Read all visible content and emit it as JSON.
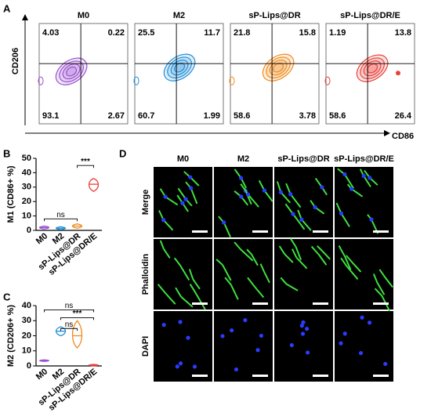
{
  "panel_labels": [
    "A",
    "B",
    "C",
    "D"
  ],
  "flow": {
    "x_label": "CD86",
    "y_label": "CD206",
    "groups": [
      {
        "name": "M0",
        "quadrants": [
          4.03,
          0.22,
          93.1,
          2.67
        ],
        "color": "#9b4fd0"
      },
      {
        "name": "M2",
        "quadrants": [
          25.5,
          11.7,
          60.7,
          1.99
        ],
        "color": "#1f8fd8"
      },
      {
        "name": "sP-Lips@DR",
        "quadrants": [
          21.8,
          15.8,
          58.6,
          3.78
        ],
        "color": "#f08a1c"
      },
      {
        "name": "sP-Lips@DR/E",
        "quadrants": [
          1.19,
          13.8,
          58.6,
          26.4
        ],
        "color": "#e8413a"
      }
    ]
  },
  "chart_data": [
    {
      "type": "violin",
      "y_label": "M1 (CD86+ %)",
      "categories": [
        "M0",
        "M2",
        "sP-Lips@DR",
        "sP-Lips@DR/E"
      ],
      "values": [
        2,
        1.5,
        3,
        32
      ],
      "low": [
        1,
        0.5,
        1.5,
        27
      ],
      "high": [
        3,
        2.5,
        4.5,
        36
      ],
      "colors": [
        "#9b4fd0",
        "#1f8fd8",
        "#f08a1c",
        "#e8413a"
      ],
      "ylim": [
        0,
        50
      ],
      "yticks": [
        0,
        10,
        20,
        30,
        40,
        50
      ],
      "annotations": [
        "ns",
        "***"
      ]
    },
    {
      "type": "violin",
      "y_label": "M2 (CD206+ %)",
      "categories": [
        "M0",
        "M2",
        "sP-Lips@DR",
        "sP-Lips@DR/E"
      ],
      "values": [
        3.5,
        23,
        20,
        0.5
      ],
      "low": [
        3,
        20,
        12,
        0
      ],
      "high": [
        4,
        26,
        30,
        1
      ],
      "colors": [
        "#9b4fd0",
        "#1f8fd8",
        "#f08a1c",
        "#e8413a"
      ],
      "ylim": [
        0,
        40
      ],
      "yticks": [
        0,
        10,
        20,
        30,
        40
      ],
      "annotations": [
        "ns",
        "***",
        "ns"
      ]
    }
  ],
  "microscopy": {
    "columns": [
      "M0",
      "M2",
      "sP-Lips@DR",
      "sP-Lips@DR/E"
    ],
    "rows": [
      {
        "label": "Merge",
        "color": "#000000"
      },
      {
        "label": "Phalloidin",
        "color": "#22c022"
      },
      {
        "label": "DAPI",
        "color": "#1010e0"
      }
    ]
  }
}
